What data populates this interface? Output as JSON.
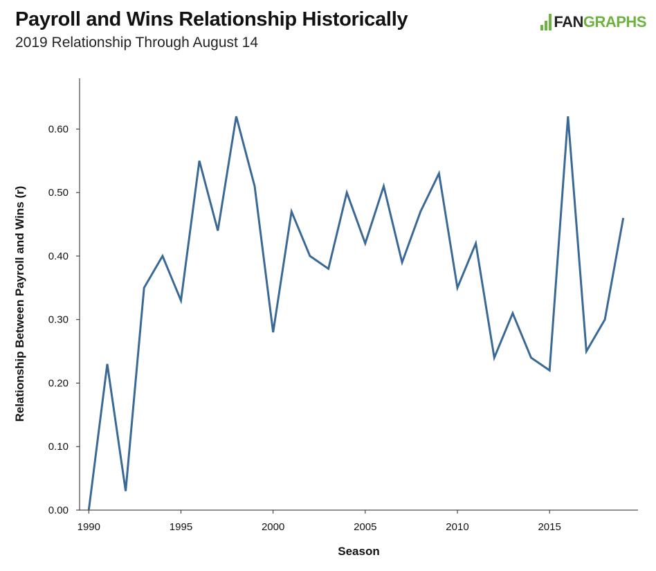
{
  "header": {
    "title": "Payroll and Wins Relationship Historically",
    "subtitle": "2019 Relationship Through August 14"
  },
  "logo": {
    "text_dark": "FAN",
    "text_green": "GRAPHS",
    "accent": "#6cb33f"
  },
  "chart_data": {
    "type": "line",
    "xlabel": "Season",
    "ylabel": "Relationship Between Payroll and Wins (r)",
    "xlim": [
      1989.5,
      2019.8
    ],
    "ylim": [
      0,
      0.68
    ],
    "x_ticks": [
      1990,
      1995,
      2000,
      2005,
      2010,
      2015
    ],
    "y_ticks": [
      "0.00",
      "0.10",
      "0.20",
      "0.30",
      "0.40",
      "0.50",
      "0.60"
    ],
    "grid": false,
    "line_color": "#3b6996",
    "series": [
      {
        "x": [
          1990,
          1991,
          1992,
          1993,
          1994,
          1995,
          1996,
          1997,
          1998,
          1999,
          2000,
          2001,
          2002,
          2003,
          2004,
          2005,
          2006,
          2007,
          2008,
          2009,
          2010,
          2011,
          2012,
          2013,
          2014,
          2015,
          2016,
          2017,
          2018,
          2019
        ],
        "values": [
          0.0,
          0.23,
          0.03,
          0.35,
          0.4,
          0.33,
          0.55,
          0.44,
          0.62,
          0.51,
          0.28,
          0.47,
          0.4,
          0.38,
          0.5,
          0.42,
          0.51,
          0.39,
          0.47,
          0.53,
          0.35,
          0.42,
          0.24,
          0.31,
          0.24,
          0.22,
          0.62,
          0.25,
          0.3,
          0.46
        ]
      }
    ]
  }
}
